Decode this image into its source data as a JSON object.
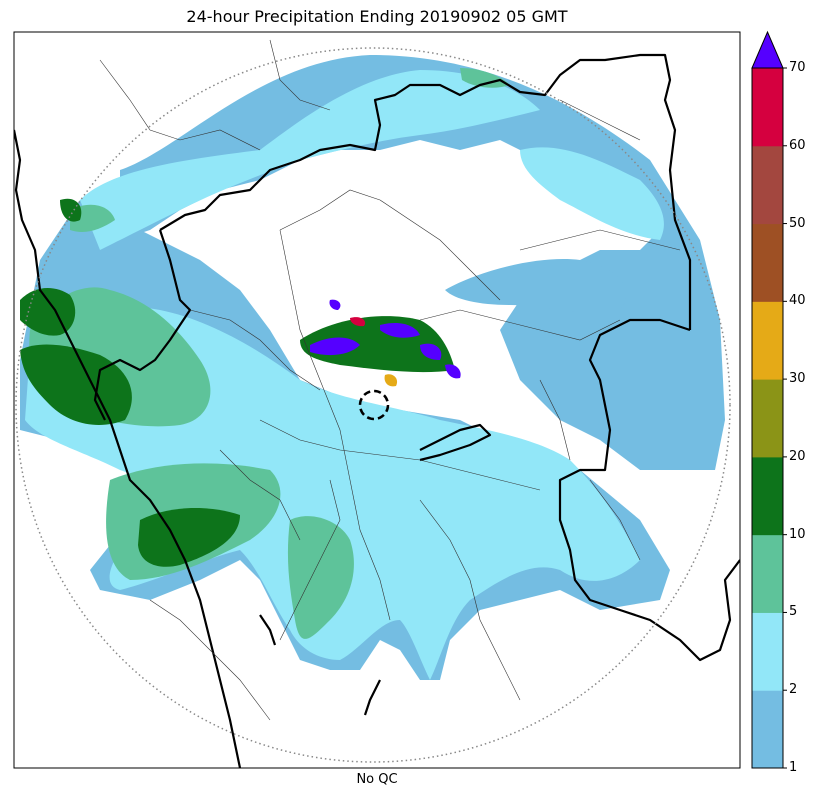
{
  "title": "24-hour Precipitation Ending 20190902 05 GMT",
  "xlabel": "No QC",
  "colorbar": {
    "ticks": [
      "1",
      "2",
      "5",
      "10",
      "20",
      "30",
      "40",
      "50",
      "60",
      "70"
    ],
    "colors": [
      "#74bde2",
      "#92e7f8",
      "#5ec39a",
      "#0d741b",
      "#8b9417",
      "#e5aa17",
      "#9e5024",
      "#a3473f",
      "#d5003f"
    ],
    "extend_color": "#5500ff"
  },
  "map": {
    "colors": {
      "light_blue": "#74bde2",
      "cyan": "#92e7f8",
      "green": "#5ec39a",
      "dark_green": "#0d741b",
      "purple": "#5500ff"
    },
    "range_ring": "dotted",
    "radar_marker": "dashed-circle"
  }
}
